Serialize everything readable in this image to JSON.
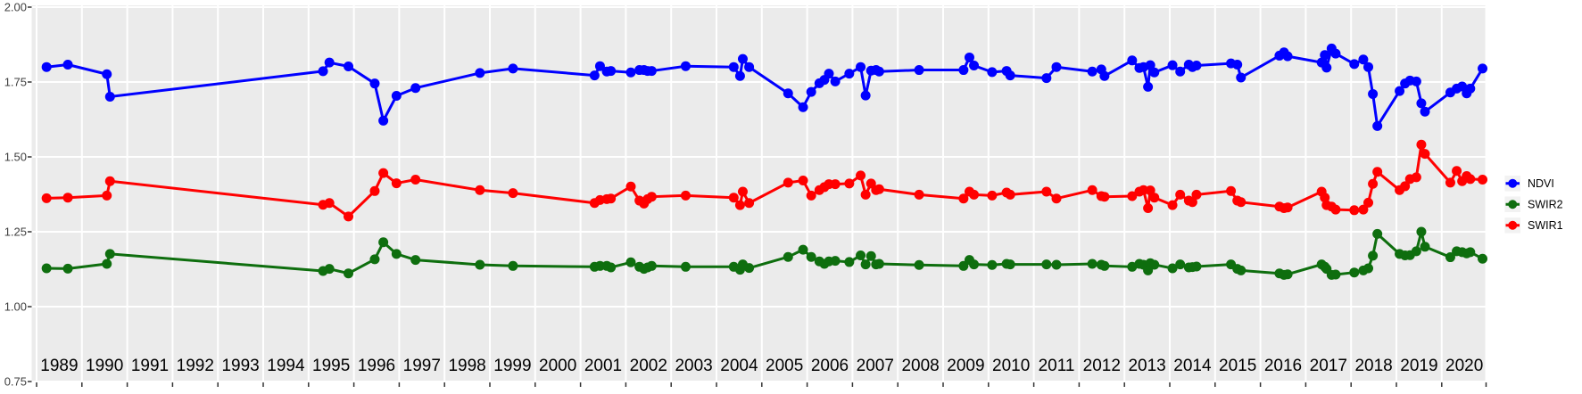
{
  "figure": {
    "background": "#ffffff",
    "panel_background": "#EBEBEB",
    "grid_color": "#FFFFFF",
    "tick_color": "#333333",
    "y_axis_text_color": "#404040",
    "x_axis_text_color": "#000000",
    "legend_key_background": "#F2F2F2",
    "legend_text_color": "#000000"
  },
  "chart_data": {
    "type": "line",
    "title": "",
    "xlabel": "",
    "ylabel": "",
    "x_unit": "decimal year",
    "xlim": [
      1989,
      2021
    ],
    "ylim": [
      0.75,
      2.0
    ],
    "grid": true,
    "legend_position": "right",
    "marker": "point",
    "x": [
      1989.22,
      1989.69,
      1990.55,
      1990.62,
      1995.32,
      1995.46,
      1995.88,
      1996.46,
      1996.65,
      1996.94,
      1997.36,
      1998.78,
      1999.51,
      2001.31,
      2001.43,
      2001.58,
      2001.67,
      2002.11,
      2002.3,
      2002.4,
      2002.48,
      2002.57,
      2003.32,
      2004.38,
      2004.52,
      2004.58,
      2004.72,
      2005.58,
      2005.91,
      2006.09,
      2006.27,
      2006.38,
      2006.48,
      2006.62,
      2006.93,
      2007.18,
      2007.29,
      2007.41,
      2007.52,
      2007.59,
      2008.47,
      2009.45,
      2009.58,
      2009.68,
      2010.08,
      2010.4,
      2010.48,
      2011.28,
      2011.5,
      2012.29,
      2012.49,
      2012.56,
      2013.17,
      2013.33,
      2013.42,
      2013.52,
      2013.57,
      2013.66,
      2014.06,
      2014.23,
      2014.42,
      2014.5,
      2014.59,
      2015.35,
      2015.49,
      2015.57,
      2016.42,
      2016.52,
      2016.6,
      2017.35,
      2017.42,
      2017.46,
      2017.57,
      2017.66,
      2018.07,
      2018.27,
      2018.38,
      2018.48,
      2018.58,
      2019.07,
      2019.19,
      2019.3,
      2019.44,
      2019.55,
      2019.63,
      2020.19,
      2020.33,
      2020.45,
      2020.55,
      2020.63,
      2020.9
    ],
    "series": [
      {
        "name": "NDVI",
        "color": "#0000FF",
        "values": [
          1.8,
          1.808,
          1.776,
          1.701,
          1.786,
          1.815,
          1.802,
          1.745,
          1.621,
          1.704,
          1.73,
          1.78,
          1.795,
          1.772,
          1.803,
          1.785,
          1.787,
          1.782,
          1.79,
          1.79,
          1.787,
          1.787,
          1.803,
          1.8,
          1.77,
          1.827,
          1.8,
          1.712,
          1.666,
          1.717,
          1.746,
          1.757,
          1.778,
          1.752,
          1.778,
          1.8,
          1.705,
          1.788,
          1.79,
          1.785,
          1.79,
          1.79,
          1.832,
          1.805,
          1.783,
          1.787,
          1.772,
          1.763,
          1.8,
          1.785,
          1.792,
          1.77,
          1.822,
          1.797,
          1.8,
          1.734,
          1.806,
          1.782,
          1.806,
          1.785,
          1.808,
          1.8,
          1.805,
          1.812,
          1.808,
          1.765,
          1.838,
          1.849,
          1.836,
          1.815,
          1.84,
          1.798,
          1.862,
          1.845,
          1.81,
          1.825,
          1.8,
          1.71,
          1.603,
          1.72,
          1.745,
          1.755,
          1.752,
          1.679,
          1.651,
          1.715,
          1.728,
          1.735,
          1.712,
          1.728,
          1.795
        ]
      },
      {
        "name": "SWIR2",
        "color": "#0E6E0E",
        "values": [
          1.128,
          1.127,
          1.143,
          1.176,
          1.119,
          1.126,
          1.111,
          1.158,
          1.215,
          1.176,
          1.156,
          1.14,
          1.136,
          1.133,
          1.136,
          1.136,
          1.131,
          1.148,
          1.133,
          1.126,
          1.131,
          1.136,
          1.133,
          1.133,
          1.123,
          1.141,
          1.129,
          1.166,
          1.19,
          1.166,
          1.151,
          1.143,
          1.151,
          1.153,
          1.149,
          1.171,
          1.141,
          1.169,
          1.141,
          1.143,
          1.139,
          1.136,
          1.156,
          1.141,
          1.139,
          1.143,
          1.141,
          1.141,
          1.14,
          1.143,
          1.14,
          1.136,
          1.133,
          1.143,
          1.14,
          1.121,
          1.145,
          1.14,
          1.128,
          1.141,
          1.131,
          1.132,
          1.134,
          1.141,
          1.126,
          1.121,
          1.111,
          1.106,
          1.108,
          1.141,
          1.133,
          1.126,
          1.106,
          1.107,
          1.114,
          1.121,
          1.128,
          1.17,
          1.243,
          1.176,
          1.171,
          1.172,
          1.185,
          1.25,
          1.2,
          1.165,
          1.185,
          1.182,
          1.178,
          1.182,
          1.16
        ]
      },
      {
        "name": "SWIR1",
        "color": "#FF0000",
        "values": [
          1.362,
          1.364,
          1.371,
          1.419,
          1.34,
          1.346,
          1.301,
          1.386,
          1.446,
          1.412,
          1.424,
          1.389,
          1.379,
          1.346,
          1.356,
          1.359,
          1.361,
          1.401,
          1.354,
          1.344,
          1.359,
          1.367,
          1.371,
          1.364,
          1.339,
          1.384,
          1.346,
          1.414,
          1.421,
          1.371,
          1.389,
          1.399,
          1.409,
          1.409,
          1.411,
          1.438,
          1.374,
          1.411,
          1.389,
          1.392,
          1.374,
          1.361,
          1.384,
          1.374,
          1.371,
          1.381,
          1.374,
          1.384,
          1.361,
          1.389,
          1.369,
          1.367,
          1.369,
          1.384,
          1.389,
          1.329,
          1.388,
          1.364,
          1.339,
          1.374,
          1.354,
          1.349,
          1.374,
          1.386,
          1.354,
          1.349,
          1.334,
          1.329,
          1.331,
          1.384,
          1.364,
          1.339,
          1.334,
          1.324,
          1.322,
          1.324,
          1.347,
          1.41,
          1.45,
          1.389,
          1.402,
          1.426,
          1.432,
          1.541,
          1.51,
          1.414,
          1.453,
          1.419,
          1.436,
          1.426,
          1.424
        ]
      }
    ],
    "axes": {
      "y_ticks": [
        {
          "label": "2.00",
          "value": 2.0
        },
        {
          "label": "1.75",
          "value": 1.75
        },
        {
          "label": "1.50",
          "value": 1.5
        },
        {
          "label": "1.25",
          "value": 1.25
        },
        {
          "label": "1.00",
          "value": 1.0
        },
        {
          "label": "0.75",
          "value": 0.75
        }
      ],
      "x_label_years": [
        1989,
        1990,
        1991,
        1992,
        1993,
        1994,
        1995,
        1996,
        1997,
        1998,
        1999,
        2000,
        2001,
        2002,
        2003,
        2004,
        2005,
        2006,
        2007,
        2008,
        2009,
        2010,
        2011,
        2012,
        2013,
        2014,
        2015,
        2016,
        2017,
        2018,
        2019,
        2020
      ],
      "x_grid_years": [
        1989,
        1990,
        1991,
        1992,
        1993,
        1994,
        1995,
        1996,
        1997,
        1998,
        1999,
        2000,
        2001,
        2002,
        2003,
        2004,
        2005,
        2006,
        2007,
        2008,
        2009,
        2010,
        2011,
        2012,
        2013,
        2014,
        2015,
        2016,
        2017,
        2018,
        2019,
        2020,
        2021
      ]
    }
  },
  "legend": {
    "items": [
      {
        "label": "NDVI",
        "color": "#0000FF"
      },
      {
        "label": "SWIR2",
        "color": "#0E6E0E"
      },
      {
        "label": "SWIR1",
        "color": "#FF0000"
      }
    ]
  }
}
